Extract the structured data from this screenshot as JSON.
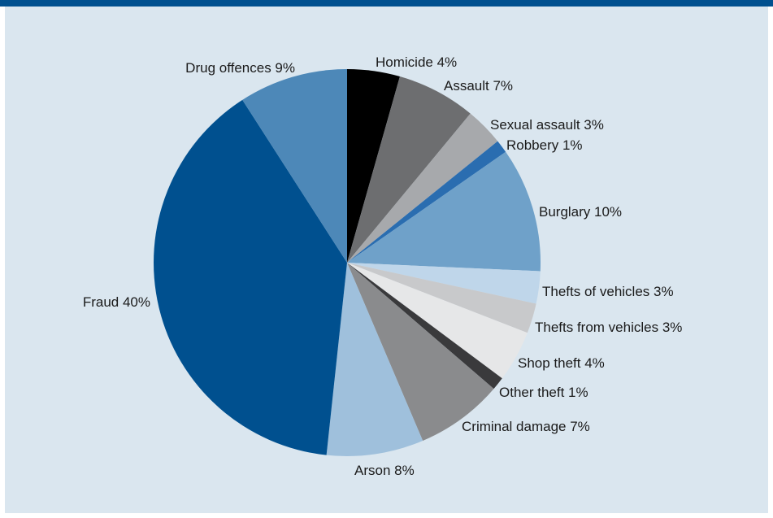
{
  "chart_data": {
    "type": "pie",
    "title": "",
    "start_angle_deg": 0,
    "direction": "clockwise",
    "slices": [
      {
        "label": "Homicide 4%",
        "category": "Homicide",
        "value": 4.4,
        "color": "#000000"
      },
      {
        "label": "Assault 7%",
        "category": "Assault",
        "value": 6.6,
        "color": "#6d6e70"
      },
      {
        "label": "Sexual assault 3%",
        "category": "Sexual assault",
        "value": 3.2,
        "color": "#a7a9ac"
      },
      {
        "label": "Robbery 1%",
        "category": "Robbery",
        "value": 1.1,
        "color": "#2a6db0"
      },
      {
        "label": "Burglary 10%",
        "category": "Burglary",
        "value": 10.4,
        "color": "#6fa1c9"
      },
      {
        "label": "Thefts of vehicles 3%",
        "category": "Thefts of vehicles",
        "value": 2.7,
        "color": "#bfd6ea"
      },
      {
        "label": "Thefts from vehicles 3%",
        "category": "Thefts from vehicles",
        "value": 2.5,
        "color": "#c8c9cb"
      },
      {
        "label": "Shop theft 4%",
        "category": "Shop theft",
        "value": 4.3,
        "color": "#e6e7e8"
      },
      {
        "label": "Other theft 1%",
        "category": "Other theft",
        "value": 1.1,
        "color": "#3a3a3c"
      },
      {
        "label": "Criminal damage 7%",
        "category": "Criminal damage",
        "value": 7.3,
        "color": "#8a8b8d"
      },
      {
        "label": "Arson 8%",
        "category": "Arson",
        "value": 8.1,
        "color": "#9fc0dc"
      },
      {
        "label": "Fraud 40%",
        "category": "Fraud",
        "value": 39.2,
        "color": "#00508f"
      },
      {
        "label": "Drug offences 9%",
        "category": "Drug offences",
        "value": 9.1,
        "color": "#4d88b8"
      }
    ]
  },
  "colors": {
    "frame_bar": "#00508f",
    "panel_background": "#dae6ef"
  }
}
